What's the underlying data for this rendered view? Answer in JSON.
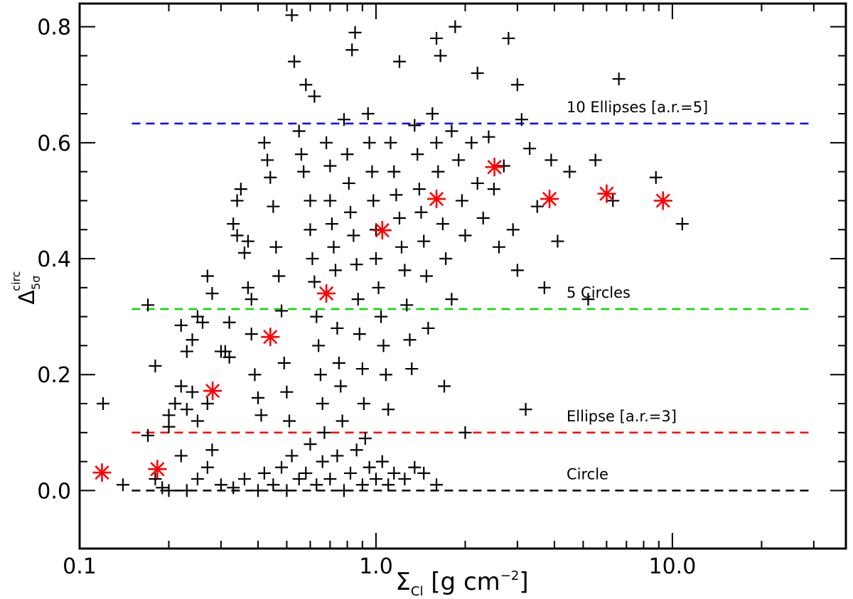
{
  "chart_data": {
    "type": "scatter",
    "xscale": "log",
    "xlim": [
      0.1,
      38.5
    ],
    "ylim": [
      -0.1,
      0.84
    ],
    "xticks": [
      {
        "v": 0.1,
        "label": "0.1"
      },
      {
        "v": 1.0,
        "label": "1.0"
      },
      {
        "v": 10.0,
        "label": "10.0"
      }
    ],
    "yticks": [
      {
        "v": 0.0,
        "label": "0.0"
      },
      {
        "v": 0.2,
        "label": "0.2"
      },
      {
        "v": 0.4,
        "label": "0.4"
      },
      {
        "v": 0.6,
        "label": "0.6"
      },
      {
        "v": 0.8,
        "label": "0.8"
      }
    ],
    "xlabel": {
      "main": "Σ",
      "sub": "Cl",
      "rest": " [g cm",
      "sup": "−2",
      "end": "]"
    },
    "ylabel": {
      "main": "Δ",
      "sub": "5σ",
      "sup": "circ"
    },
    "reference_lines": [
      {
        "y": 0.633,
        "x_from": 0.15,
        "x_to": 30,
        "color": "#0000ff",
        "label": "10 Ellipses [a.r.=5]"
      },
      {
        "y": 0.313,
        "x_from": 0.15,
        "x_to": 30,
        "color": "#00dd00",
        "label": "5 Circles"
      },
      {
        "y": 0.1,
        "x_from": 0.15,
        "x_to": 30,
        "color": "#ff0000",
        "label": "Ellipse [a.r.=3]"
      },
      {
        "y": 0.0,
        "x_from": 0.15,
        "x_to": 30,
        "color": "#000000",
        "label": "Circle"
      }
    ],
    "series": [
      {
        "name": "clumps",
        "marker": "plus",
        "color": "#000000",
        "points": [
          [
            0.12,
            0.15
          ],
          [
            0.14,
            0.01
          ],
          [
            0.17,
            0.32
          ],
          [
            0.18,
            0.215
          ],
          [
            0.17,
            0.095
          ],
          [
            0.18,
            0.02
          ],
          [
            0.19,
            0.005
          ],
          [
            0.2,
            0.0
          ],
          [
            0.2,
            0.13
          ],
          [
            0.21,
            0.15
          ],
          [
            0.2,
            0.11
          ],
          [
            0.22,
            0.18
          ],
          [
            0.23,
            0.14
          ],
          [
            0.24,
            0.17
          ],
          [
            0.22,
            0.285
          ],
          [
            0.23,
            0.24
          ],
          [
            0.24,
            0.26
          ],
          [
            0.25,
            0.12
          ],
          [
            0.25,
            0.3
          ],
          [
            0.26,
            0.29
          ],
          [
            0.27,
            0.37
          ],
          [
            0.28,
            0.34
          ],
          [
            0.27,
            0.15
          ],
          [
            0.28,
            0.07
          ],
          [
            0.3,
            0.24
          ],
          [
            0.31,
            0.24
          ],
          [
            0.32,
            0.29
          ],
          [
            0.32,
            0.23
          ],
          [
            0.33,
            0.46
          ],
          [
            0.34,
            0.44
          ],
          [
            0.34,
            0.5
          ],
          [
            0.35,
            0.52
          ],
          [
            0.36,
            0.41
          ],
          [
            0.37,
            0.43
          ],
          [
            0.37,
            0.35
          ],
          [
            0.38,
            0.33
          ],
          [
            0.38,
            0.27
          ],
          [
            0.39,
            0.2
          ],
          [
            0.4,
            0.16
          ],
          [
            0.41,
            0.13
          ],
          [
            0.42,
            0.6
          ],
          [
            0.43,
            0.57
          ],
          [
            0.44,
            0.54
          ],
          [
            0.45,
            0.49
          ],
          [
            0.46,
            0.42
          ],
          [
            0.47,
            0.37
          ],
          [
            0.48,
            0.31
          ],
          [
            0.49,
            0.22
          ],
          [
            0.5,
            0.17
          ],
          [
            0.51,
            0.12
          ],
          [
            0.52,
            0.82
          ],
          [
            0.53,
            0.74
          ],
          [
            0.55,
            0.62
          ],
          [
            0.56,
            0.58
          ],
          [
            0.57,
            0.55
          ],
          [
            0.58,
            0.7
          ],
          [
            0.6,
            0.5
          ],
          [
            0.6,
            0.45
          ],
          [
            0.61,
            0.4
          ],
          [
            0.62,
            0.68
          ],
          [
            0.62,
            0.36
          ],
          [
            0.63,
            0.3
          ],
          [
            0.64,
            0.25
          ],
          [
            0.65,
            0.2
          ],
          [
            0.66,
            0.15
          ],
          [
            0.67,
            0.1
          ],
          [
            0.68,
            0.6
          ],
          [
            0.7,
            0.56
          ],
          [
            0.7,
            0.5
          ],
          [
            0.71,
            0.46
          ],
          [
            0.72,
            0.42
          ],
          [
            0.73,
            0.38
          ],
          [
            0.74,
            0.28
          ],
          [
            0.75,
            0.22
          ],
          [
            0.76,
            0.18
          ],
          [
            0.77,
            0.12
          ],
          [
            0.78,
            0.64
          ],
          [
            0.8,
            0.58
          ],
          [
            0.81,
            0.53
          ],
          [
            0.82,
            0.48
          ],
          [
            0.83,
            0.76
          ],
          [
            0.84,
            0.44
          ],
          [
            0.85,
            0.79
          ],
          [
            0.86,
            0.39
          ],
          [
            0.87,
            0.33
          ],
          [
            0.88,
            0.27
          ],
          [
            0.9,
            0.21
          ],
          [
            0.91,
            0.15
          ],
          [
            0.92,
            0.09
          ],
          [
            0.94,
            0.65
          ],
          [
            0.95,
            0.6
          ],
          [
            0.97,
            0.55
          ],
          [
            0.98,
            0.5
          ],
          [
            1.0,
            0.45
          ],
          [
            1.0,
            0.4
          ],
          [
            1.02,
            0.35
          ],
          [
            1.04,
            0.3
          ],
          [
            1.06,
            0.25
          ],
          [
            1.08,
            0.2
          ],
          [
            1.1,
            0.14
          ],
          [
            1.12,
            0.6
          ],
          [
            1.15,
            0.55
          ],
          [
            1.17,
            0.51
          ],
          [
            1.2,
            0.74
          ],
          [
            1.2,
            0.47
          ],
          [
            1.22,
            0.42
          ],
          [
            1.25,
            0.38
          ],
          [
            1.27,
            0.32
          ],
          [
            1.3,
            0.26
          ],
          [
            1.32,
            0.21
          ],
          [
            1.35,
            0.63
          ],
          [
            1.38,
            0.58
          ],
          [
            1.4,
            0.52
          ],
          [
            1.42,
            0.48
          ],
          [
            1.45,
            0.43
          ],
          [
            1.48,
            0.37
          ],
          [
            1.5,
            0.28
          ],
          [
            1.55,
            0.65
          ],
          [
            1.6,
            0.78
          ],
          [
            1.6,
            0.6
          ],
          [
            1.62,
            0.55
          ],
          [
            1.65,
            0.75
          ],
          [
            1.68,
            0.46
          ],
          [
            1.7,
            0.18
          ],
          [
            1.72,
            0.4
          ],
          [
            1.8,
            0.33
          ],
          [
            1.8,
            0.62
          ],
          [
            1.85,
            0.8
          ],
          [
            1.9,
            0.57
          ],
          [
            1.95,
            0.5
          ],
          [
            2.0,
            0.1
          ],
          [
            2.0,
            0.44
          ],
          [
            2.1,
            0.6
          ],
          [
            2.2,
            0.72
          ],
          [
            2.2,
            0.53
          ],
          [
            2.3,
            0.47
          ],
          [
            2.4,
            0.61
          ],
          [
            2.5,
            0.52
          ],
          [
            2.6,
            0.42
          ],
          [
            2.7,
            0.56
          ],
          [
            2.8,
            0.78
          ],
          [
            2.9,
            0.45
          ],
          [
            3.0,
            0.7
          ],
          [
            3.0,
            0.38
          ],
          [
            3.1,
            0.64
          ],
          [
            3.2,
            0.14
          ],
          [
            3.3,
            0.59
          ],
          [
            3.5,
            0.49
          ],
          [
            3.7,
            0.35
          ],
          [
            3.9,
            0.57
          ],
          [
            4.1,
            0.43
          ],
          [
            4.5,
            0.55
          ],
          [
            5.2,
            0.33
          ],
          [
            5.5,
            0.57
          ],
          [
            6.3,
            0.5
          ],
          [
            6.6,
            0.71
          ],
          [
            8.8,
            0.54
          ],
          [
            10.8,
            0.46
          ],
          [
            0.3,
            0.01
          ],
          [
            0.33,
            0.005
          ],
          [
            0.36,
            0.02
          ],
          [
            0.4,
            0.0
          ],
          [
            0.42,
            0.03
          ],
          [
            0.45,
            0.01
          ],
          [
            0.48,
            0.04
          ],
          [
            0.5,
            0.0
          ],
          [
            0.52,
            0.06
          ],
          [
            0.55,
            0.02
          ],
          [
            0.58,
            0.03
          ],
          [
            0.6,
            0.08
          ],
          [
            0.63,
            0.01
          ],
          [
            0.66,
            0.05
          ],
          [
            0.7,
            0.02
          ],
          [
            0.74,
            0.06
          ],
          [
            0.78,
            0.0
          ],
          [
            0.82,
            0.03
          ],
          [
            0.86,
            0.07
          ],
          [
            0.9,
            0.01
          ],
          [
            0.95,
            0.04
          ],
          [
            1.0,
            0.02
          ],
          [
            1.05,
            0.05
          ],
          [
            1.1,
            0.01
          ],
          [
            1.15,
            0.03
          ],
          [
            1.25,
            0.02
          ],
          [
            1.35,
            0.04
          ],
          [
            1.45,
            0.03
          ],
          [
            1.6,
            0.01
          ],
          [
            0.25,
            0.02
          ],
          [
            0.27,
            0.04
          ],
          [
            0.23,
            0.0
          ],
          [
            0.22,
            0.06
          ]
        ]
      },
      {
        "name": "highlighted",
        "marker": "asterisk",
        "color": "#ff0000",
        "points": [
          [
            0.119,
            0.031
          ],
          [
            0.183,
            0.037
          ],
          [
            0.281,
            0.172
          ],
          [
            0.44,
            0.265
          ],
          [
            0.68,
            0.34
          ],
          [
            1.05,
            0.449
          ],
          [
            1.6,
            0.503
          ],
          [
            2.51,
            0.558
          ],
          [
            3.85,
            0.503
          ],
          [
            6.0,
            0.512
          ],
          [
            9.3,
            0.5
          ]
        ]
      }
    ]
  }
}
